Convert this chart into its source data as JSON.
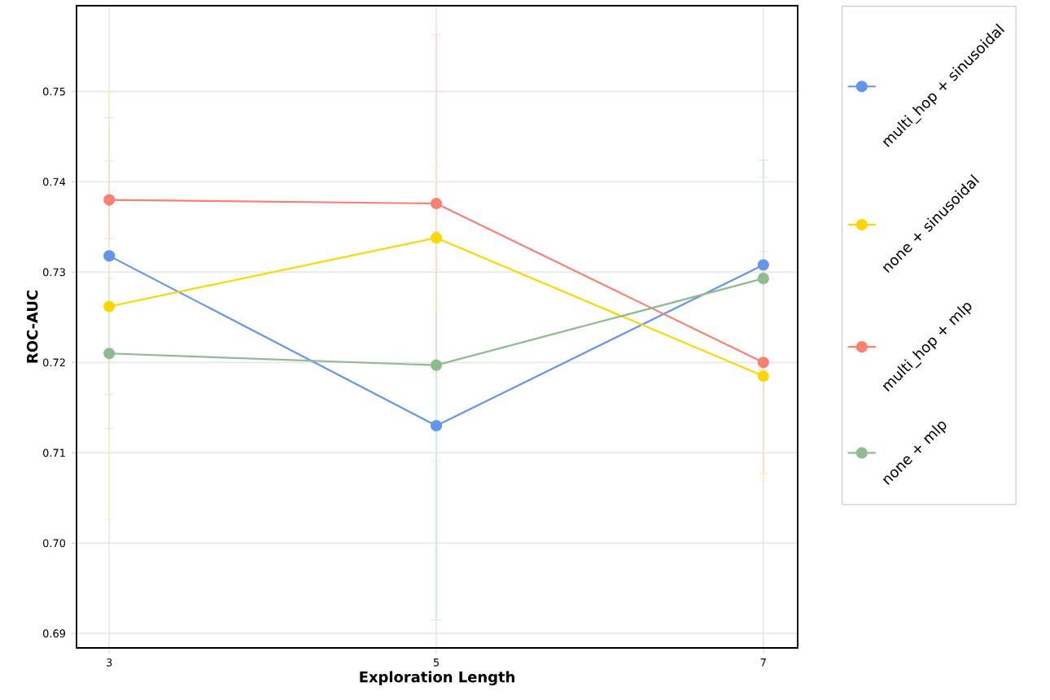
{
  "chart_data": {
    "type": "line",
    "xlabel": "Exploration Length",
    "ylabel": "ROC-AUC",
    "x": [
      3,
      5,
      7
    ],
    "xlim": [
      2.8,
      7.21
    ],
    "xticks": [
      3,
      5,
      7
    ],
    "ylim": [
      0.6884,
      0.7595
    ],
    "yticks": [
      0.69,
      {
        "value": 0.7,
        "label": "0.70"
      },
      0.71,
      0.72,
      0.73,
      0.74,
      0.75
    ],
    "grid": true,
    "legend": "right",
    "marker": "circle",
    "line_style": "solid",
    "series": [
      {
        "name": "multi_hop + sinusoidal",
        "color": "#6495ed",
        "values": [
          0.7318,
          0.713,
          0.7308
        ],
        "errors": [
          0.0153,
          0.0215,
          0.0116
        ]
      },
      {
        "name": "none + sinusoidal",
        "color": "#ffd700",
        "values": [
          0.7262,
          0.7338,
          0.7185
        ],
        "errors": [
          0.0236,
          0.0079,
          0.0117
        ]
      },
      {
        "name": "multi_hop + mlp",
        "color": "#fa8072",
        "values": [
          0.738,
          0.7376,
          0.72
        ],
        "errors": [
          0.0043,
          0.0187,
          0.0123
        ]
      },
      {
        "name": "none + mlp",
        "color": "#8fbc8f",
        "values": [
          0.721,
          0.7197,
          0.7293
        ],
        "errors": [
          0.0083,
          0.0106,
          0.0112
        ]
      }
    ]
  }
}
